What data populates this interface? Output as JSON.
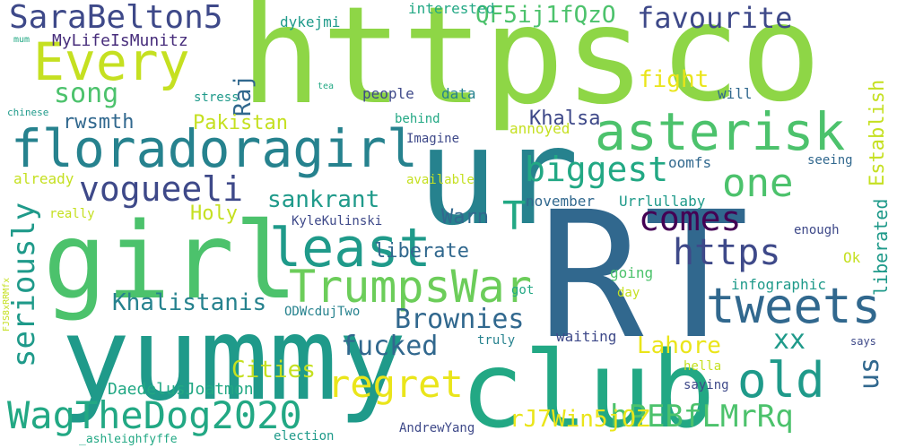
{
  "palette": {
    "lime": "#8ed646",
    "yellow_green": "#c5e021",
    "yellow": "#eae51a",
    "green": "#4cc26c",
    "light_green": "#6ccd5a",
    "teal_green": "#22a884",
    "teal": "#1f9a8a",
    "blue_teal": "#26828e",
    "blue": "#31688e",
    "slate_blue": "#3e4989",
    "purple": "#472d7b",
    "dark_purple": "#440154"
  },
  "words": [
    {
      "text": "https",
      "color": "lime"
    },
    {
      "text": "co",
      "color": "lime"
    },
    {
      "text": "RT",
      "color": "blue"
    },
    {
      "text": "ur",
      "color": "blue_teal"
    },
    {
      "text": "girl",
      "color": "green"
    },
    {
      "text": "yummy",
      "color": "teal"
    },
    {
      "text": "club",
      "color": "teal_green"
    },
    {
      "text": "floradoragirl",
      "color": "blue_teal"
    },
    {
      "text": "Every",
      "color": "yellow_green"
    },
    {
      "text": "asterisk",
      "color": "green"
    },
    {
      "text": "SaraBelton5",
      "color": "slate_blue"
    },
    {
      "text": "least",
      "color": "teal"
    },
    {
      "text": "TrumpsWar",
      "color": "light_green"
    },
    {
      "text": "tweets",
      "color": "blue"
    },
    {
      "text": "old",
      "color": "teal"
    },
    {
      "text": "WagTheDog2020",
      "color": "teal_green"
    },
    {
      "text": "one",
      "color": "green"
    },
    {
      "text": "biggest",
      "color": "teal_green"
    },
    {
      "text": "vogueeli",
      "color": "slate_blue"
    },
    {
      "text": "regret",
      "color": "yellow"
    },
    {
      "text": "favourite",
      "color": "slate_blue"
    },
    {
      "text": "QF5ij1fQzO",
      "color": "green"
    },
    {
      "text": "T",
      "color": "teal_green"
    },
    {
      "text": "comes",
      "color": "dark_purple"
    },
    {
      "text": "https",
      "color": "slate_blue"
    },
    {
      "text": "Brownies",
      "color": "blue"
    },
    {
      "text": "fucked",
      "color": "blue"
    },
    {
      "text": "xx",
      "color": "teal"
    },
    {
      "text": "hPEBfLMrRq",
      "color": "green"
    },
    {
      "text": "rJ7Win5jOZ",
      "color": "yellow"
    },
    {
      "text": "seriously",
      "color": "teal"
    },
    {
      "text": "song",
      "color": "green"
    },
    {
      "text": "Raj",
      "color": "blue"
    },
    {
      "text": "Khalsa",
      "color": "slate_blue"
    },
    {
      "text": "fight",
      "color": "yellow"
    },
    {
      "text": "rwsmth",
      "color": "blue"
    },
    {
      "text": "Pakistan",
      "color": "yellow_green"
    },
    {
      "text": "sankrant",
      "color": "teal"
    },
    {
      "text": "Holy",
      "color": "yellow_green"
    },
    {
      "text": "Warn",
      "color": "blue"
    },
    {
      "text": "liberate",
      "color": "blue"
    },
    {
      "text": "Khalistanis",
      "color": "blue_teal"
    },
    {
      "text": "Lahore",
      "color": "yellow"
    },
    {
      "text": "Cities",
      "color": "yellow_green"
    },
    {
      "text": "us",
      "color": "blue"
    },
    {
      "text": "DaedelusJoatmon",
      "color": "teal_green"
    },
    {
      "text": "liberated",
      "color": "teal"
    },
    {
      "text": "Establish",
      "color": "yellow_green"
    },
    {
      "text": "MyLifeIsMunitz",
      "color": "purple"
    },
    {
      "text": "dykejmi",
      "color": "teal"
    },
    {
      "text": "interested",
      "color": "teal_green"
    },
    {
      "text": "people",
      "color": "slate_blue"
    },
    {
      "text": "data",
      "color": "blue_teal"
    },
    {
      "text": "will",
      "color": "blue"
    },
    {
      "text": "stress",
      "color": "teal"
    },
    {
      "text": "behind",
      "color": "teal_green"
    },
    {
      "text": "annoyed",
      "color": "yellow_green"
    },
    {
      "text": "Imagine",
      "color": "slate_blue"
    },
    {
      "text": "oomfs",
      "color": "blue"
    },
    {
      "text": "seeing",
      "color": "blue"
    },
    {
      "text": "available",
      "color": "yellow_green"
    },
    {
      "text": "already",
      "color": "yellow_green"
    },
    {
      "text": "really",
      "color": "yellow_green"
    },
    {
      "text": "november",
      "color": "blue"
    },
    {
      "text": "Urrlullaby",
      "color": "teal"
    },
    {
      "text": "KyleKulinski",
      "color": "slate_blue"
    },
    {
      "text": "enough",
      "color": "slate_blue"
    },
    {
      "text": "Ok",
      "color": "yellow_green"
    },
    {
      "text": "going",
      "color": "green"
    },
    {
      "text": "day",
      "color": "yellow_green"
    },
    {
      "text": "infographic",
      "color": "teal"
    },
    {
      "text": "got",
      "color": "teal_green"
    },
    {
      "text": "ODWcdujTwo",
      "color": "blue_teal"
    },
    {
      "text": "truly",
      "color": "blue_teal"
    },
    {
      "text": "waiting",
      "color": "slate_blue"
    },
    {
      "text": "hella",
      "color": "yellow_green"
    },
    {
      "text": "saying",
      "color": "slate_blue"
    },
    {
      "text": "says",
      "color": "slate_blue"
    },
    {
      "text": "_ashleighfyffe",
      "color": "teal_green"
    },
    {
      "text": "AndrewYang",
      "color": "slate_blue"
    },
    {
      "text": "election",
      "color": "teal"
    },
    {
      "text": "FJS8xRRMfx",
      "color": "yellow_green"
    },
    {
      "text": "mum",
      "color": "teal_green"
    },
    {
      "text": "tea",
      "color": "teal_green"
    },
    {
      "text": "chinese",
      "color": "teal"
    }
  ]
}
